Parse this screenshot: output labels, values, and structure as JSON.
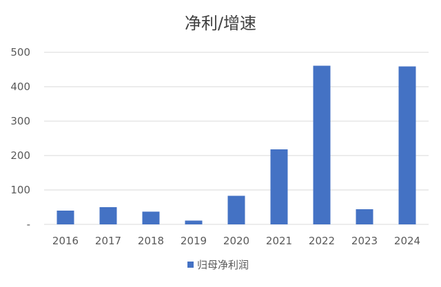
{
  "chart_data": {
    "type": "bar",
    "title": "净利/增速",
    "categories": [
      "2016",
      "2017",
      "2018",
      "2019",
      "2020",
      "2021",
      "2022",
      "2023",
      "2024"
    ],
    "series": [
      {
        "name": "归母净利润",
        "color": "#4472c4",
        "values": [
          40,
          50,
          37,
          11,
          83,
          218,
          461,
          44,
          459
        ]
      }
    ],
    "ylim": [
      0,
      500
    ],
    "yticks": [
      0,
      100,
      200,
      300,
      400,
      500
    ],
    "ytick_labels": [
      "-",
      "100",
      "200",
      "300",
      "400",
      "500"
    ],
    "grid": true,
    "legend": "bottom"
  }
}
